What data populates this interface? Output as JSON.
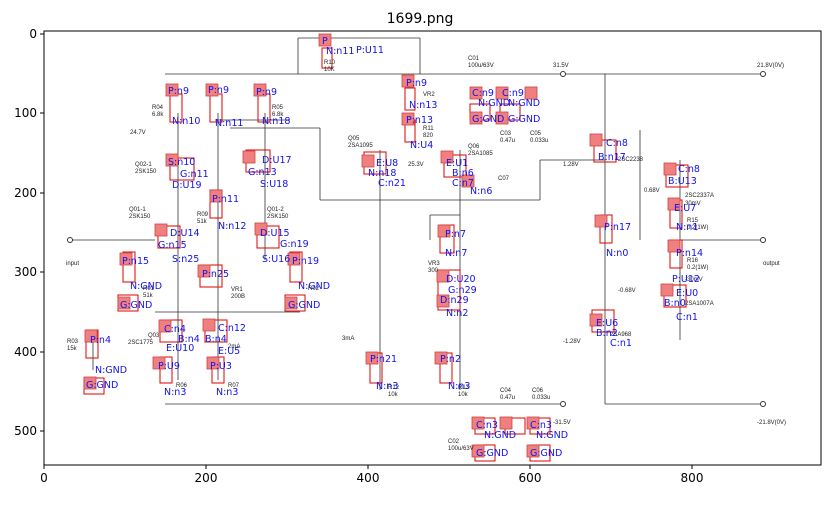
{
  "figure": {
    "title": "1699.png",
    "x_ticks": [
      "0",
      "200",
      "400",
      "600",
      "800"
    ],
    "y_ticks": [
      "0",
      "100",
      "200",
      "300",
      "400",
      "500"
    ]
  },
  "schematic_texts": [
    {
      "id": "s1",
      "text": "R10"
    },
    {
      "id": "s2",
      "text": "10K"
    },
    {
      "id": "s3",
      "text": "C01"
    },
    {
      "id": "s4",
      "text": "100u/63V"
    },
    {
      "id": "s5",
      "text": "31.5V"
    },
    {
      "id": "s6",
      "text": "21.8V(0V)"
    },
    {
      "id": "s7",
      "text": "R04"
    },
    {
      "id": "s8",
      "text": "6.8k"
    },
    {
      "id": "s9",
      "text": "R05"
    },
    {
      "id": "s10",
      "text": "6.8k"
    },
    {
      "id": "s11",
      "text": "24.7V"
    },
    {
      "id": "s12",
      "text": "Q05"
    },
    {
      "id": "s13",
      "text": "2SA1095"
    },
    {
      "id": "s14",
      "text": "VR2"
    },
    {
      "id": "s15",
      "text": "R11"
    },
    {
      "id": "s16",
      "text": "820"
    },
    {
      "id": "s17",
      "text": "C03"
    },
    {
      "id": "s18",
      "text": "0.47u"
    },
    {
      "id": "s19",
      "text": "C05"
    },
    {
      "id": "s20",
      "text": "0.033u"
    },
    {
      "id": "s21",
      "text": "Q06"
    },
    {
      "id": "s22",
      "text": "2SA1085"
    },
    {
      "id": "s23",
      "text": "25.3V"
    },
    {
      "id": "s24",
      "text": "C07"
    },
    {
      "id": "s25",
      "text": "1.28V"
    },
    {
      "id": "s26",
      "text": "0.68V"
    },
    {
      "id": "s27",
      "text": "Q02-1"
    },
    {
      "id": "s28",
      "text": "2SK150"
    },
    {
      "id": "s29",
      "text": "Q01-1"
    },
    {
      "id": "s30",
      "text": "2SK150"
    },
    {
      "id": "s31",
      "text": "Q01-2"
    },
    {
      "id": "s32",
      "text": "2SK150"
    },
    {
      "id": "s33",
      "text": "R09"
    },
    {
      "id": "s34",
      "text": "51k"
    },
    {
      "id": "s35",
      "text": "input"
    },
    {
      "id": "s36",
      "text": "output"
    },
    {
      "id": "s37",
      "text": "R15"
    },
    {
      "id": "s38",
      "text": "0.2(1W)"
    },
    {
      "id": "s39",
      "text": "R16"
    },
    {
      "id": "s40",
      "text": "0.2(1W)"
    },
    {
      "id": "s41",
      "text": "R01"
    },
    {
      "id": "s42",
      "text": "51k"
    },
    {
      "id": "s43",
      "text": "VR1"
    },
    {
      "id": "s44",
      "text": "200B"
    },
    {
      "id": "s45",
      "text": "R02"
    },
    {
      "id": "s46",
      "text": "VR3"
    },
    {
      "id": "s47",
      "text": "300"
    },
    {
      "id": "s48",
      "text": "-0.68V"
    },
    {
      "id": "s49",
      "text": "2SA1007A"
    },
    {
      "id": "s50",
      "text": "2SC2337A"
    },
    {
      "id": "s51",
      "text": "R03"
    },
    {
      "id": "s52",
      "text": "15k"
    },
    {
      "id": "s53",
      "text": "Q03"
    },
    {
      "id": "s54",
      "text": "2SC1775"
    },
    {
      "id": "s55",
      "text": "2mA"
    },
    {
      "id": "s56",
      "text": "3mA"
    },
    {
      "id": "s57",
      "text": "-1.28V"
    },
    {
      "id": "s58",
      "text": "2SA968"
    },
    {
      "id": "s59",
      "text": "R06"
    },
    {
      "id": "s60",
      "text": "R07"
    },
    {
      "id": "s61",
      "text": "R12"
    },
    {
      "id": "s62",
      "text": "10k"
    },
    {
      "id": "s63",
      "text": "R13"
    },
    {
      "id": "s64",
      "text": "10k"
    },
    {
      "id": "s65",
      "text": "C04"
    },
    {
      "id": "s66",
      "text": "0.47u"
    },
    {
      "id": "s67",
      "text": "C06"
    },
    {
      "id": "s68",
      "text": "0.033u"
    },
    {
      "id": "s69",
      "text": "-31.5V"
    },
    {
      "id": "s70",
      "text": "-21.8V(0V)"
    },
    {
      "id": "s71",
      "text": "C02"
    },
    {
      "id": "s72",
      "text": "100u/63V"
    },
    {
      "id": "s73",
      "text": "2SC2238"
    },
    {
      "id": "s74",
      "text": "-30mV"
    },
    {
      "id": "s75",
      "text": "30mV"
    }
  ],
  "annotations": [
    {
      "id": "a1",
      "text": "P"
    },
    {
      "id": "a2",
      "text": "N:n11"
    },
    {
      "id": "a3",
      "text": "P:U11"
    },
    {
      "id": "a4",
      "text": "P:n9"
    },
    {
      "id": "a5",
      "text": "N:n10"
    },
    {
      "id": "a6",
      "text": "P:n9"
    },
    {
      "id": "a7",
      "text": "N:n11"
    },
    {
      "id": "a8",
      "text": "P:n9"
    },
    {
      "id": "a9",
      "text": "N:n18"
    },
    {
      "id": "a10",
      "text": "P:n9"
    },
    {
      "id": "a11",
      "text": "N:n13"
    },
    {
      "id": "a12",
      "text": "P:n13"
    },
    {
      "id": "a13",
      "text": "N:U4"
    },
    {
      "id": "a14",
      "text": "C:n9"
    },
    {
      "id": "a15",
      "text": "N:GND"
    },
    {
      "id": "a16",
      "text": "C:n9"
    },
    {
      "id": "a17",
      "text": "N:GND"
    },
    {
      "id": "a18",
      "text": "G:GND"
    },
    {
      "id": "a19",
      "text": "G:GND"
    },
    {
      "id": "a20",
      "text": "S:n10"
    },
    {
      "id": "a21",
      "text": "G:n11"
    },
    {
      "id": "a22",
      "text": "D:U19"
    },
    {
      "id": "a23",
      "text": "D:U17"
    },
    {
      "id": "a24",
      "text": "G:n13"
    },
    {
      "id": "a25",
      "text": "S:U18"
    },
    {
      "id": "a26",
      "text": "E:U8"
    },
    {
      "id": "a27",
      "text": "N:n18"
    },
    {
      "id": "a28",
      "text": "C:n21"
    },
    {
      "id": "a29",
      "text": "E:U1"
    },
    {
      "id": "a30",
      "text": "B:n6"
    },
    {
      "id": "a31",
      "text": "C:n7"
    },
    {
      "id": "a32",
      "text": "N:n6"
    },
    {
      "id": "a33",
      "text": "C:n8"
    },
    {
      "id": "a34",
      "text": "B:n17"
    },
    {
      "id": "a35",
      "text": "C:n8"
    },
    {
      "id": "a36",
      "text": "B:U13"
    },
    {
      "id": "a37",
      "text": "E:U7"
    },
    {
      "id": "a38",
      "text": "P:n11"
    },
    {
      "id": "a39",
      "text": "N:n12"
    },
    {
      "id": "a40",
      "text": "D:U14"
    },
    {
      "id": "a41",
      "text": "G:n15"
    },
    {
      "id": "a42",
      "text": "S:n25"
    },
    {
      "id": "a43",
      "text": "D:U15"
    },
    {
      "id": "a44",
      "text": "G:n19"
    },
    {
      "id": "a45",
      "text": "S:U16"
    },
    {
      "id": "a46",
      "text": "P:n7"
    },
    {
      "id": "a47",
      "text": "N:n7"
    },
    {
      "id": "a48",
      "text": "P:n17"
    },
    {
      "id": "a49",
      "text": "N:n0"
    },
    {
      "id": "a50",
      "text": "P:n14"
    },
    {
      "id": "a51",
      "text": "N:n1"
    },
    {
      "id": "a52",
      "text": "P:n15"
    },
    {
      "id": "a53",
      "text": "N:GND"
    },
    {
      "id": "a54",
      "text": "P:n25"
    },
    {
      "id": "a55",
      "text": "P:n19"
    },
    {
      "id": "a56",
      "text": "N:GND"
    },
    {
      "id": "a57",
      "text": "G:GND"
    },
    {
      "id": "a58",
      "text": "G:GND"
    },
    {
      "id": "a59",
      "text": "D:U20"
    },
    {
      "id": "a60",
      "text": "G:n29"
    },
    {
      "id": "a61",
      "text": "D:n29"
    },
    {
      "id": "a62",
      "text": "N:n2"
    },
    {
      "id": "a63",
      "text": "P:n4"
    },
    {
      "id": "a64",
      "text": "N:GND"
    },
    {
      "id": "a65",
      "text": "G:GND"
    },
    {
      "id": "a66",
      "text": "C:n4"
    },
    {
      "id": "a67",
      "text": "B:n4"
    },
    {
      "id": "a68",
      "text": "E:U10"
    },
    {
      "id": "a69",
      "text": "C:n12"
    },
    {
      "id": "a70",
      "text": "B:n4"
    },
    {
      "id": "a71",
      "text": "E:U5"
    },
    {
      "id": "a72",
      "text": "P:U9"
    },
    {
      "id": "a73",
      "text": "N:n3"
    },
    {
      "id": "a74",
      "text": "P:U3"
    },
    {
      "id": "a75",
      "text": "N:n3"
    },
    {
      "id": "a76",
      "text": "P:n21"
    },
    {
      "id": "a77",
      "text": "N:n3"
    },
    {
      "id": "a78",
      "text": "P:n2"
    },
    {
      "id": "a79",
      "text": "N:n3"
    },
    {
      "id": "a80",
      "text": "E:U6"
    },
    {
      "id": "a81",
      "text": "B:n2"
    },
    {
      "id": "a82",
      "text": "C:n1"
    },
    {
      "id": "a83",
      "text": "B:n0"
    },
    {
      "id": "a84",
      "text": "E:U0"
    },
    {
      "id": "a85",
      "text": "C:n1"
    },
    {
      "id": "a86",
      "text": "P:U12"
    },
    {
      "id": "a87",
      "text": "C:n3"
    },
    {
      "id": "a88",
      "text": "N:GND"
    },
    {
      "id": "a89",
      "text": "C:n3"
    },
    {
      "id": "a90",
      "text": "N:GND"
    },
    {
      "id": "a91",
      "text": "G:GND"
    },
    {
      "id": "a92",
      "text": "G:GND"
    }
  ]
}
